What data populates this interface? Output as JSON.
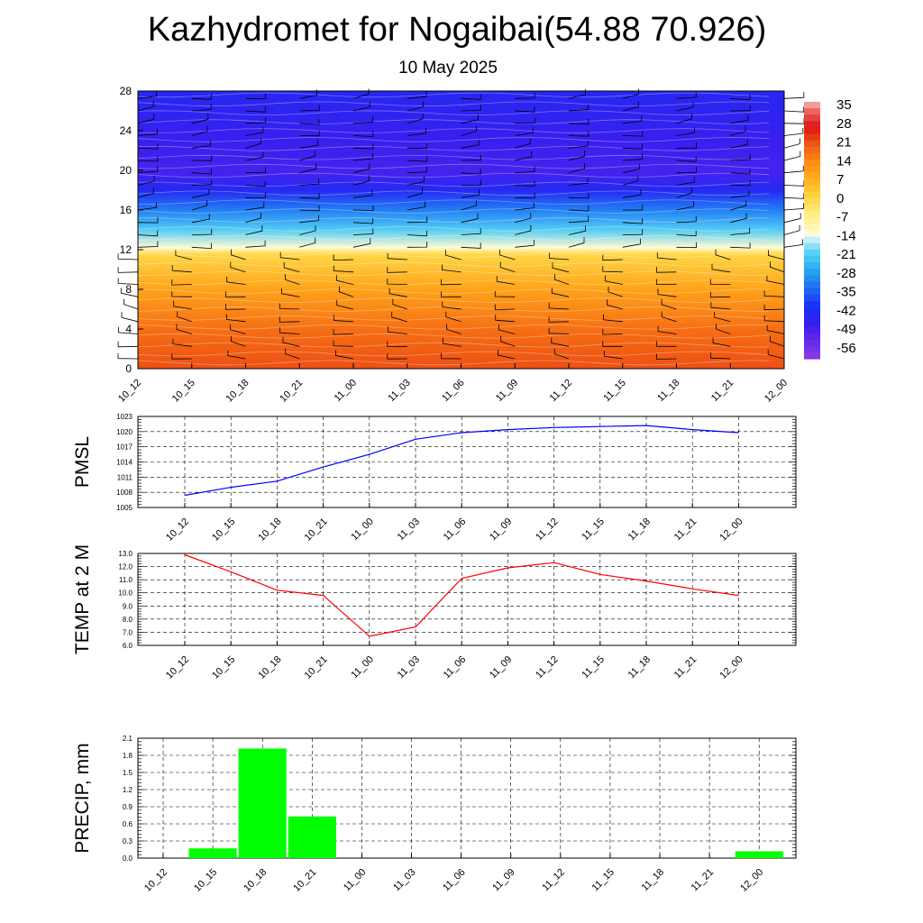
{
  "title": "Kazhydromet for Nogaibai(54.88 70.926)",
  "subtitle": "10 May 2025",
  "time_labels": [
    "10_12",
    "10_15",
    "10_18",
    "10_21",
    "11_00",
    "11_03",
    "11_06",
    "11_09",
    "11_12",
    "11_15",
    "11_18",
    "11_21",
    "12_00"
  ],
  "colors": {
    "pmsl_line": "#0000ff",
    "temp_line": "#ff0000",
    "precip_bar": "#00ff00",
    "grid": "#000000"
  },
  "chart_data": [
    {
      "type": "heatmap",
      "name": "cross-section",
      "y_ticks": [
        "0",
        "4",
        "8",
        "12",
        "16",
        "20",
        "24",
        "28"
      ],
      "ylim": [
        0,
        28
      ],
      "colorbar_labels": [
        "35",
        "28",
        "21",
        "14",
        "7",
        "0",
        "-7",
        "-14",
        "-21",
        "-28",
        "-35",
        "-42",
        "-49",
        "-56"
      ],
      "colorbar_range": [
        -63,
        38
      ],
      "temperature_profile": [
        {
          "level": 0,
          "value": 22
        },
        {
          "level": 4,
          "value": 18
        },
        {
          "level": 8,
          "value": 10
        },
        {
          "level": 11.5,
          "value": 0
        },
        {
          "level": 12.2,
          "value": -14
        },
        {
          "level": 14,
          "value": -22
        },
        {
          "level": 16,
          "value": -33
        },
        {
          "level": 18,
          "value": -45
        },
        {
          "level": 20,
          "value": -52
        },
        {
          "level": 23,
          "value": -50
        },
        {
          "level": 28,
          "value": -46
        }
      ],
      "wind_barbs": true
    },
    {
      "type": "line",
      "ylabel": "PMSL",
      "ylim": [
        1005,
        1023
      ],
      "y_ticks": [
        "1005",
        "1008",
        "1011",
        "1014",
        "1017",
        "1020",
        "1023"
      ],
      "values": [
        1007.4,
        1009.0,
        1010.2,
        1013.0,
        1015.5,
        1018.5,
        1019.8,
        1020.4,
        1020.8,
        1021.0,
        1021.2,
        1020.4,
        1019.8
      ]
    },
    {
      "type": "line",
      "ylabel": "TEMP at 2 M",
      "ylim": [
        6.0,
        13.0
      ],
      "y_ticks": [
        "6.0",
        "7.0",
        "8.0",
        "9.0",
        "10.0",
        "11.0",
        "12.0",
        "13.0"
      ],
      "values": [
        12.9,
        11.6,
        10.2,
        9.8,
        6.7,
        7.4,
        11.1,
        11.9,
        12.3,
        11.4,
        10.9,
        10.3,
        9.8
      ]
    },
    {
      "type": "bar",
      "ylabel": "PRECIP, mm",
      "ylim": [
        0,
        2.1
      ],
      "y_ticks": [
        "0.0",
        "0.3",
        "0.6",
        "0.9",
        "1.2",
        "1.5",
        "1.8",
        "2.1"
      ],
      "values": [
        0,
        0.17,
        1.92,
        0.73,
        0,
        0,
        0,
        0,
        0,
        0,
        0,
        0,
        0.12
      ]
    }
  ]
}
